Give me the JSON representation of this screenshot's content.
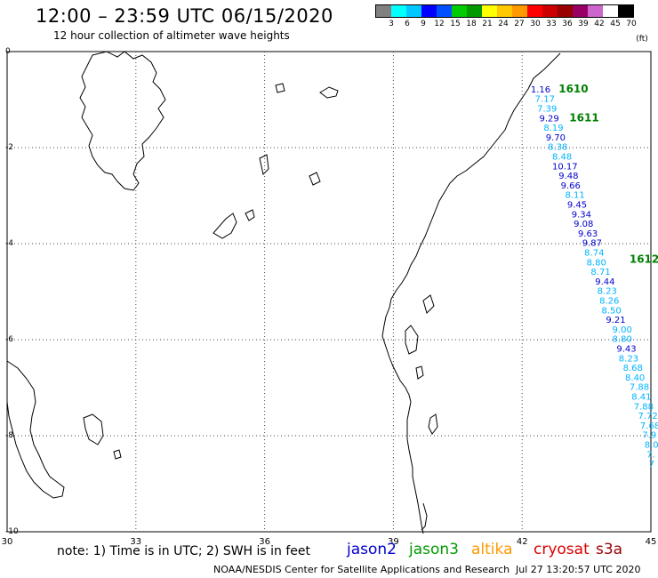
{
  "header": {
    "title": "12:00 – 23:59 UTC 06/15/2020",
    "subtitle": "12 hour collection of altimeter wave heights"
  },
  "colorbar": {
    "swatches": [
      "#808080",
      "#00ffff",
      "#00c8ff",
      "#0000ff",
      "#0050ff",
      "#00cc00",
      "#009900",
      "#ffff00",
      "#ffc800",
      "#ff9900",
      "#ff0000",
      "#cc0000",
      "#990000",
      "#990066",
      "#cc66cc",
      "#ffffff",
      "#000000"
    ],
    "labels": [
      "3",
      "6",
      "9",
      "12",
      "15",
      "18",
      "21",
      "24",
      "27",
      "30",
      "33",
      "36",
      "39",
      "42",
      "45",
      "70"
    ],
    "unit": "(ft)"
  },
  "axes": {
    "x_ticks": [
      "30",
      "33",
      "36",
      "39",
      "42",
      "45"
    ],
    "y_ticks": [
      "0",
      "-2",
      "-4",
      "-6",
      "-8",
      "-10"
    ],
    "x_values": [
      30,
      33,
      36,
      39,
      42,
      45
    ],
    "y_values": [
      0,
      -2,
      -4,
      -6,
      -8,
      -10
    ]
  },
  "passes": [
    {
      "label": "1610",
      "lon": 42.85,
      "lat": -0.85,
      "color": "#008000"
    },
    {
      "label": "1611",
      "lon": 43.1,
      "lat": -1.45,
      "color": "#008000"
    },
    {
      "label": "1612",
      "lon": 44.5,
      "lat": -4.4,
      "color": "#008000"
    }
  ],
  "track": [
    {
      "v": "1.16",
      "lon": 42.2,
      "lat": -0.85,
      "c": "#0000cc"
    },
    {
      "v": "7.17",
      "lon": 42.3,
      "lat": -1.05,
      "c": "#00b4ff"
    },
    {
      "v": "7.39",
      "lon": 42.35,
      "lat": -1.25,
      "c": "#00b4ff"
    },
    {
      "v": "9.29",
      "lon": 42.4,
      "lat": -1.45,
      "c": "#0000cc"
    },
    {
      "v": "8.19",
      "lon": 42.5,
      "lat": -1.65,
      "c": "#00b4ff"
    },
    {
      "v": "9.70",
      "lon": 42.55,
      "lat": -1.85,
      "c": "#0000cc"
    },
    {
      "v": "8.38",
      "lon": 42.6,
      "lat": -2.05,
      "c": "#00b4ff"
    },
    {
      "v": "8.48",
      "lon": 42.7,
      "lat": -2.25,
      "c": "#00b4ff"
    },
    {
      "v": "10.17",
      "lon": 42.7,
      "lat": -2.45,
      "c": "#0000cc"
    },
    {
      "v": "9.48",
      "lon": 42.85,
      "lat": -2.65,
      "c": "#0000cc"
    },
    {
      "v": "9.66",
      "lon": 42.9,
      "lat": -2.85,
      "c": "#0000cc"
    },
    {
      "v": "8.11",
      "lon": 43.0,
      "lat": -3.05,
      "c": "#00b4ff"
    },
    {
      "v": "9.45",
      "lon": 43.05,
      "lat": -3.25,
      "c": "#0000cc"
    },
    {
      "v": "9.34",
      "lon": 43.15,
      "lat": -3.45,
      "c": "#0000cc"
    },
    {
      "v": "9.08",
      "lon": 43.2,
      "lat": -3.65,
      "c": "#0000cc"
    },
    {
      "v": "9.63",
      "lon": 43.3,
      "lat": -3.85,
      "c": "#0000cc"
    },
    {
      "v": "9.87",
      "lon": 43.4,
      "lat": -4.05,
      "c": "#0000cc"
    },
    {
      "v": "8.74",
      "lon": 43.45,
      "lat": -4.25,
      "c": "#00b4ff"
    },
    {
      "v": "8.80",
      "lon": 43.5,
      "lat": -4.45,
      "c": "#00b4ff"
    },
    {
      "v": "8.71",
      "lon": 43.6,
      "lat": -4.65,
      "c": "#00b4ff"
    },
    {
      "v": "9.44",
      "lon": 43.7,
      "lat": -4.85,
      "c": "#0000cc"
    },
    {
      "v": "8.23",
      "lon": 43.75,
      "lat": -5.05,
      "c": "#00b4ff"
    },
    {
      "v": "8.26",
      "lon": 43.8,
      "lat": -5.25,
      "c": "#00b4ff"
    },
    {
      "v": "8.50",
      "lon": 43.85,
      "lat": -5.45,
      "c": "#00b4ff"
    },
    {
      "v": "9.21",
      "lon": 43.95,
      "lat": -5.65,
      "c": "#0000cc"
    },
    {
      "v": "9.00",
      "lon": 44.1,
      "lat": -5.85,
      "c": "#00b4ff"
    },
    {
      "v": "8.80",
      "lon": 44.1,
      "lat": -6.05,
      "c": "#00b4ff"
    },
    {
      "v": "9.43",
      "lon": 44.2,
      "lat": -6.25,
      "c": "#0000cc"
    },
    {
      "v": "8.23",
      "lon": 44.25,
      "lat": -6.45,
      "c": "#00b4ff"
    },
    {
      "v": "8.68",
      "lon": 44.35,
      "lat": -6.65,
      "c": "#00b4ff"
    },
    {
      "v": "8.40",
      "lon": 44.4,
      "lat": -6.85,
      "c": "#00b4ff"
    },
    {
      "v": "7.88",
      "lon": 44.5,
      "lat": -7.05,
      "c": "#00b4ff"
    },
    {
      "v": "8.41",
      "lon": 44.55,
      "lat": -7.25,
      "c": "#00b4ff"
    },
    {
      "v": "7.88",
      "lon": 44.6,
      "lat": -7.45,
      "c": "#00b4ff"
    },
    {
      "v": "7.72",
      "lon": 44.7,
      "lat": -7.65,
      "c": "#00b4ff"
    },
    {
      "v": "7.68",
      "lon": 44.75,
      "lat": -7.85,
      "c": "#00b4ff"
    },
    {
      "v": "7.9",
      "lon": 44.8,
      "lat": -8.05,
      "c": "#00b4ff"
    },
    {
      "v": "8.0",
      "lon": 44.85,
      "lat": -8.25,
      "c": "#00b4ff"
    },
    {
      "v": "7.",
      "lon": 44.9,
      "lat": -8.45,
      "c": "#00b4ff"
    },
    {
      "v": "7",
      "lon": 44.95,
      "lat": -8.65,
      "c": "#00b4ff"
    }
  ],
  "footer": {
    "note": "note:  1) Time is in UTC;  2) SWH is in feet",
    "satellites": [
      {
        "name": "jason2",
        "color": "#0000cc"
      },
      {
        "name": "jason3",
        "color": "#009900"
      },
      {
        "name": "altika",
        "color": "#ff9900"
      },
      {
        "name": "cryosat",
        "color": "#dd0000"
      },
      {
        "name": "s3a",
        "color": "#990000"
      }
    ],
    "credit": "NOAA/NESDIS Center for Satellite Applications and Research",
    "timestamp": "Jul 27 13:20:57 UTC 2020"
  }
}
